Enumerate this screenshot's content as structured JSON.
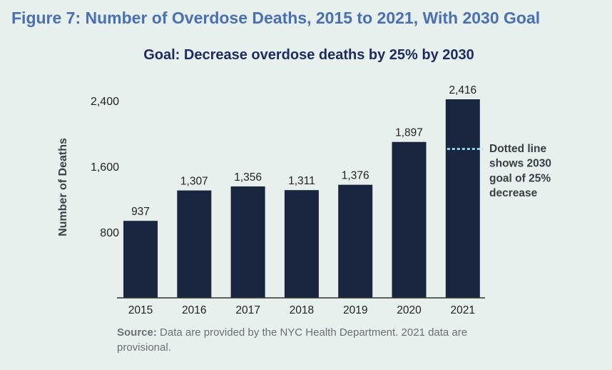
{
  "figure_title": "Figure 7: Number of Overdose Deaths, 2015 to 2021, With 2030 Goal",
  "source_label": "Source:",
  "source_text": " Data are provided by the NYC Health Department. 2021 data are provisional.",
  "colors": {
    "bar": "#1a2540",
    "goal_line": "#8fd3e8",
    "title": "#4a6fb3",
    "subtitle": "#1e2a5e",
    "background": "#e8f0ee"
  },
  "chart_data": {
    "type": "bar",
    "title": "Goal: Decrease overdose deaths by 25% by 2030",
    "xlabel": "",
    "ylabel": "Number of Deaths",
    "categories": [
      "2015",
      "2016",
      "2017",
      "2018",
      "2019",
      "2020",
      "2021"
    ],
    "values": [
      937,
      1307,
      1356,
      1311,
      1376,
      1897,
      2416
    ],
    "value_labels": [
      "937",
      "1,307",
      "1,356",
      "1,311",
      "1,376",
      "1,897",
      "2,416"
    ],
    "yticks": [
      800,
      1600,
      2400
    ],
    "ytick_labels": [
      "800",
      "1,600",
      "2,400"
    ],
    "ylim": [
      0,
      2416
    ],
    "grid": false,
    "goal": {
      "value": 1812,
      "label_lines": [
        "Dotted line",
        "shows 2030",
        "goal of 25%",
        "decrease"
      ]
    }
  }
}
